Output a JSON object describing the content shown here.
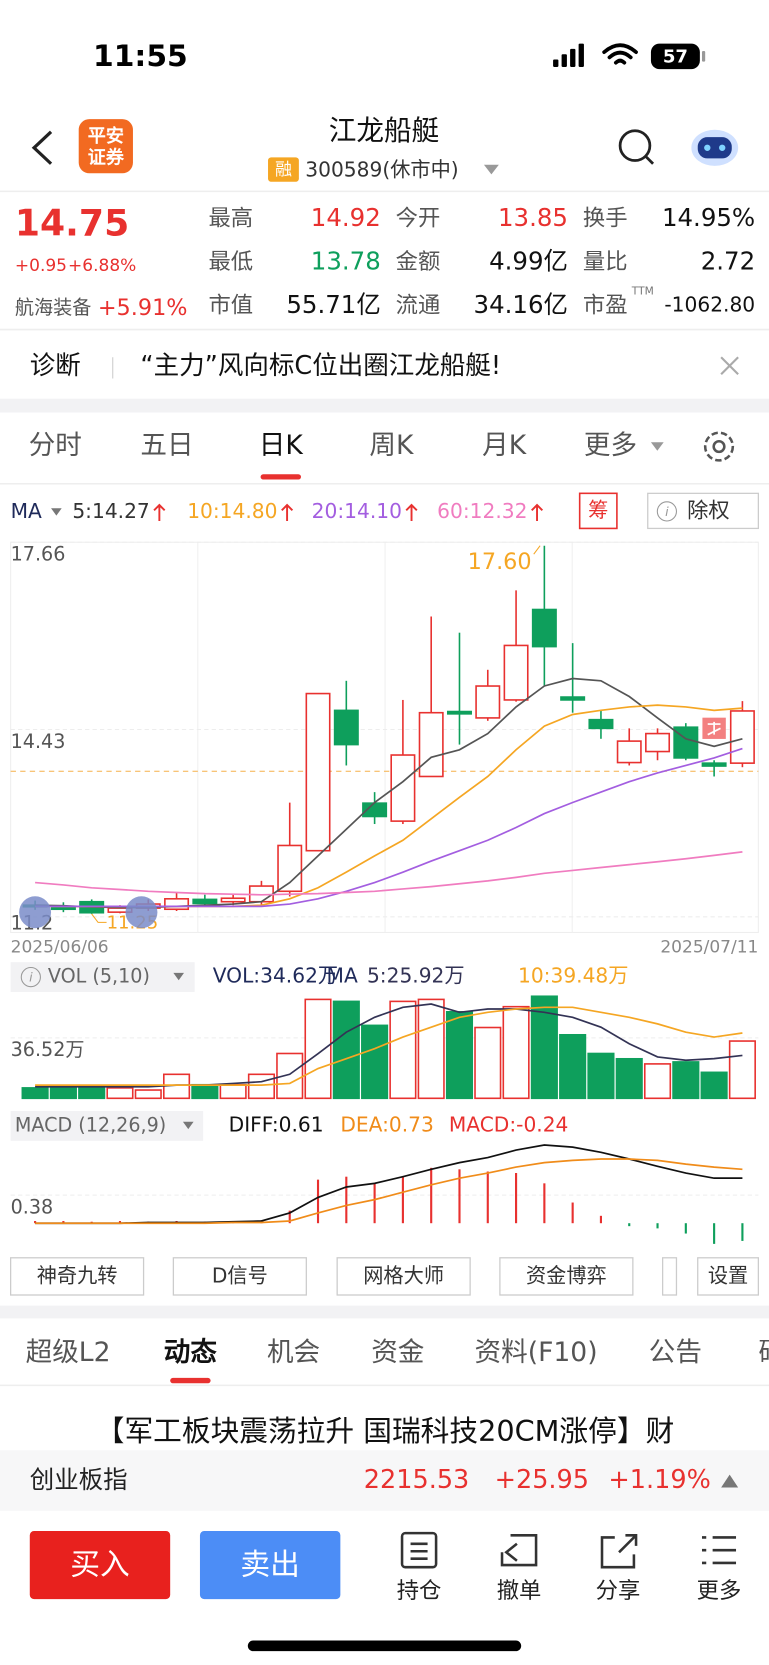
{
  "status": {
    "time": "11:55",
    "battery": "57"
  },
  "header": {
    "logo": [
      "平安",
      "证券"
    ],
    "title": "江龙船艇",
    "tag": "融",
    "code": "300589(休市中)"
  },
  "quote": {
    "price": "14.75",
    "change": "+0.95",
    "pct": "+6.88%",
    "sector": "航海装备",
    "sector_pct": "+5.91%",
    "fields": [
      {
        "label": "最高",
        "value": "14.92",
        "color": "#e8312f"
      },
      {
        "label": "今开",
        "value": "13.85",
        "color": "#e8312f"
      },
      {
        "label": "换手",
        "value": "14.95%",
        "color": "#111111"
      },
      {
        "label": "最低",
        "value": "13.78",
        "color": "#0e9f5c"
      },
      {
        "label": "金额",
        "value": "4.99亿",
        "color": "#111111"
      },
      {
        "label": "量比",
        "value": "2.72",
        "color": "#111111"
      },
      {
        "label": "市值",
        "value": "55.71亿",
        "color": "#111111"
      },
      {
        "label": "流通",
        "value": "34.16亿",
        "color": "#111111"
      },
      {
        "label": "市盈",
        "value": "-1062.80",
        "color": "#111111",
        "sup": "TTM"
      }
    ]
  },
  "diagnosis": {
    "label": "诊断",
    "text": "“主力”风向标C位出圈江龙船艇!"
  },
  "tabs": {
    "items": [
      "分时",
      "五日",
      "日K",
      "周K",
      "月K",
      "更多"
    ],
    "active": 2
  },
  "ma_legend": {
    "label": "MA",
    "items": [
      {
        "text": "5:14.27",
        "color": "#333333"
      },
      {
        "text": "10:14.80",
        "color": "#f5a623"
      },
      {
        "text": "20:14.10",
        "color": "#a35ee0"
      },
      {
        "text": "60:12.32",
        "color": "#f07cc0"
      }
    ],
    "chip": "筹",
    "button": "除权"
  },
  "chart_data": [
    {
      "type": "candlestick",
      "categories": [
        "2025/06/06",
        null,
        null,
        null,
        null,
        null,
        null,
        null,
        null,
        null,
        null,
        null,
        null,
        null,
        null,
        null,
        null,
        null,
        null,
        null,
        null,
        null,
        null,
        null,
        null,
        "2025/07/11"
      ],
      "open": [
        11.4,
        11.38,
        11.46,
        11.28,
        11.35,
        11.33,
        11.5,
        11.46,
        11.46,
        11.64,
        12.34,
        14.76,
        13.16,
        12.85,
        13.62,
        14.74,
        14.63,
        14.94,
        16.5,
        14.99,
        14.6,
        13.86,
        14.05,
        14.47,
        13.85,
        13.85
      ],
      "high": [
        11.48,
        11.45,
        11.5,
        11.4,
        11.5,
        11.62,
        11.58,
        11.6,
        11.82,
        13.17,
        15.05,
        15.27,
        13.35,
        14.94,
        16.38,
        16.1,
        15.46,
        16.83,
        17.6,
        15.92,
        14.76,
        14.45,
        14.45,
        14.54,
        13.9,
        14.92
      ],
      "low": [
        11.32,
        11.28,
        11.25,
        11.26,
        11.3,
        11.3,
        11.4,
        11.4,
        11.4,
        11.55,
        12.34,
        13.81,
        12.8,
        12.8,
        13.62,
        14.17,
        14.58,
        14.91,
        15.18,
        14.72,
        14.27,
        13.81,
        13.9,
        13.9,
        13.62,
        13.78
      ],
      "close": [
        11.38,
        11.33,
        11.27,
        11.35,
        11.42,
        11.51,
        11.43,
        11.52,
        11.73,
        12.43,
        15.05,
        14.17,
        12.93,
        13.99,
        14.72,
        14.7,
        15.18,
        15.88,
        15.86,
        14.94,
        14.45,
        14.23,
        14.36,
        13.94,
        13.8,
        14.75
      ],
      "up_color": "#e8312f",
      "down_color": "#0e9f5c",
      "series": [
        {
          "color": "#555555",
          "values": [
            11.4,
            11.39,
            11.37,
            11.36,
            11.36,
            11.38,
            11.4,
            11.42,
            11.46,
            11.79,
            12.25,
            12.71,
            13.17,
            13.53,
            13.95,
            14.08,
            14.36,
            14.82,
            15.18,
            15.31,
            15.27,
            15.0,
            14.63,
            14.27,
            14.14,
            14.27
          ]
        },
        {
          "color": "#f5a623",
          "values": [
            11.38,
            11.38,
            11.38,
            11.38,
            11.38,
            11.38,
            11.38,
            11.38,
            11.4,
            11.51,
            11.7,
            11.97,
            12.25,
            12.52,
            12.89,
            13.26,
            13.62,
            14.08,
            14.49,
            14.69,
            14.76,
            14.82,
            14.85,
            14.82,
            14.76,
            14.8
          ]
        },
        {
          "color": "#a35ee0",
          "values": [
            11.38,
            11.38,
            11.38,
            11.38,
            11.38,
            11.38,
            11.38,
            11.38,
            11.38,
            11.42,
            11.51,
            11.64,
            11.79,
            11.97,
            12.16,
            12.34,
            12.52,
            12.74,
            12.98,
            13.17,
            13.35,
            13.53,
            13.68,
            13.81,
            13.94,
            14.1
          ]
        },
        {
          "color": "#f07cc0",
          "values": [
            11.79,
            11.75,
            11.7,
            11.67,
            11.64,
            11.62,
            11.6,
            11.59,
            11.58,
            11.59,
            11.6,
            11.62,
            11.64,
            11.68,
            11.72,
            11.77,
            11.82,
            11.88,
            11.95,
            12.0,
            12.05,
            12.1,
            12.15,
            12.2,
            12.26,
            12.32
          ]
        }
      ],
      "max_label": "17.60",
      "min_label": "11.25",
      "ref_line": 13.71,
      "ylim": [
        10.93,
        17.66
      ],
      "yticks": [
        17.66,
        14.43,
        11.2
      ],
      "grid": true
    },
    {
      "type": "bar",
      "legend": {
        "name": "VOL (5,10)",
        "vol": "VOL:34.62万",
        "ma": "MA",
        "ma5": "5:25.92万",
        "ma10": "10:39.48万"
      },
      "values": [
        6.3,
        6.3,
        6.9,
        6.3,
        5.0,
        14.5,
        8.2,
        8.2,
        14.5,
        27.1,
        59.8,
        58.6,
        44.1,
        58.6,
        59.8,
        52.3,
        42.8,
        55.4,
        61.7,
        38.4,
        27.1,
        23.9,
        20.8,
        22.0,
        15.7,
        34.62
      ],
      "series": [
        {
          "color": "#333355",
          "values": [
            7,
            7,
            7,
            7,
            7,
            8,
            8,
            9,
            10,
            14.5,
            27,
            40,
            49,
            55,
            57,
            52,
            54,
            54,
            52,
            49,
            43,
            33,
            25,
            23,
            24,
            25.92
          ]
        },
        {
          "color": "#f5a623",
          "values": [
            8,
            8,
            8,
            8,
            8,
            8,
            8,
            8,
            8,
            9,
            18,
            24,
            30,
            37,
            43,
            49,
            52,
            54,
            55,
            55,
            52,
            49,
            45,
            40,
            37,
            39.48
          ]
        }
      ],
      "ylim": [
        0,
        63
      ],
      "yticks": [
        {
          "value": 36.52,
          "label": "36.52万"
        }
      ],
      "grid": true
    },
    {
      "type": "bar",
      "legend": {
        "name": "MACD (12,26,9)",
        "diff": "DIFF:0.61",
        "dea": "DEA:0.73",
        "macd": "MACD:-0.24"
      },
      "values": [
        0.03,
        0.03,
        0.02,
        0.03,
        0.02,
        0.03,
        0.02,
        0.03,
        0.04,
        0.17,
        0.59,
        0.63,
        0.54,
        0.63,
        0.75,
        0.73,
        0.7,
        0.68,
        0.54,
        0.28,
        0.1,
        -0.04,
        -0.07,
        -0.14,
        -0.28,
        -0.24
      ],
      "series": [
        {
          "color": "#111111",
          "values": [
            0.0,
            0.0,
            0.0,
            0.0,
            0.01,
            0.01,
            0.01,
            0.02,
            0.03,
            0.14,
            0.35,
            0.49,
            0.54,
            0.63,
            0.73,
            0.82,
            0.89,
            0.99,
            1.06,
            1.03,
            0.96,
            0.87,
            0.77,
            0.68,
            0.61,
            0.61
          ]
        },
        {
          "color": "#f08c1a",
          "values": [
            0.0,
            0.0,
            0.0,
            0.0,
            0.0,
            0.0,
            0.0,
            0.01,
            0.01,
            0.03,
            0.14,
            0.24,
            0.32,
            0.42,
            0.52,
            0.61,
            0.68,
            0.76,
            0.82,
            0.85,
            0.87,
            0.87,
            0.85,
            0.8,
            0.76,
            0.73
          ]
        }
      ],
      "ylim": [
        -0.31,
        1.13
      ],
      "yticks": [
        0.38
      ],
      "grid": true
    }
  ],
  "tools": [
    "神奇九转",
    "D信号",
    "网格大师",
    "资金博弈",
    "设置"
  ],
  "news_tabs": {
    "items": [
      "超级L2",
      "动态",
      "机会",
      "资金",
      "资料(F10)",
      "公告",
      "研"
    ],
    "active": 1
  },
  "headline": "【军工板块震荡拉升 国瑞科技20CM涨停】财",
  "index_bar": {
    "name": "创业板指",
    "value": "2215.53",
    "change": "+25.95",
    "pct": "+1.19%"
  },
  "actions": {
    "buy": "买入",
    "sell": "卖出",
    "items": [
      "持仓",
      "撤单",
      "分享",
      "更多"
    ]
  }
}
